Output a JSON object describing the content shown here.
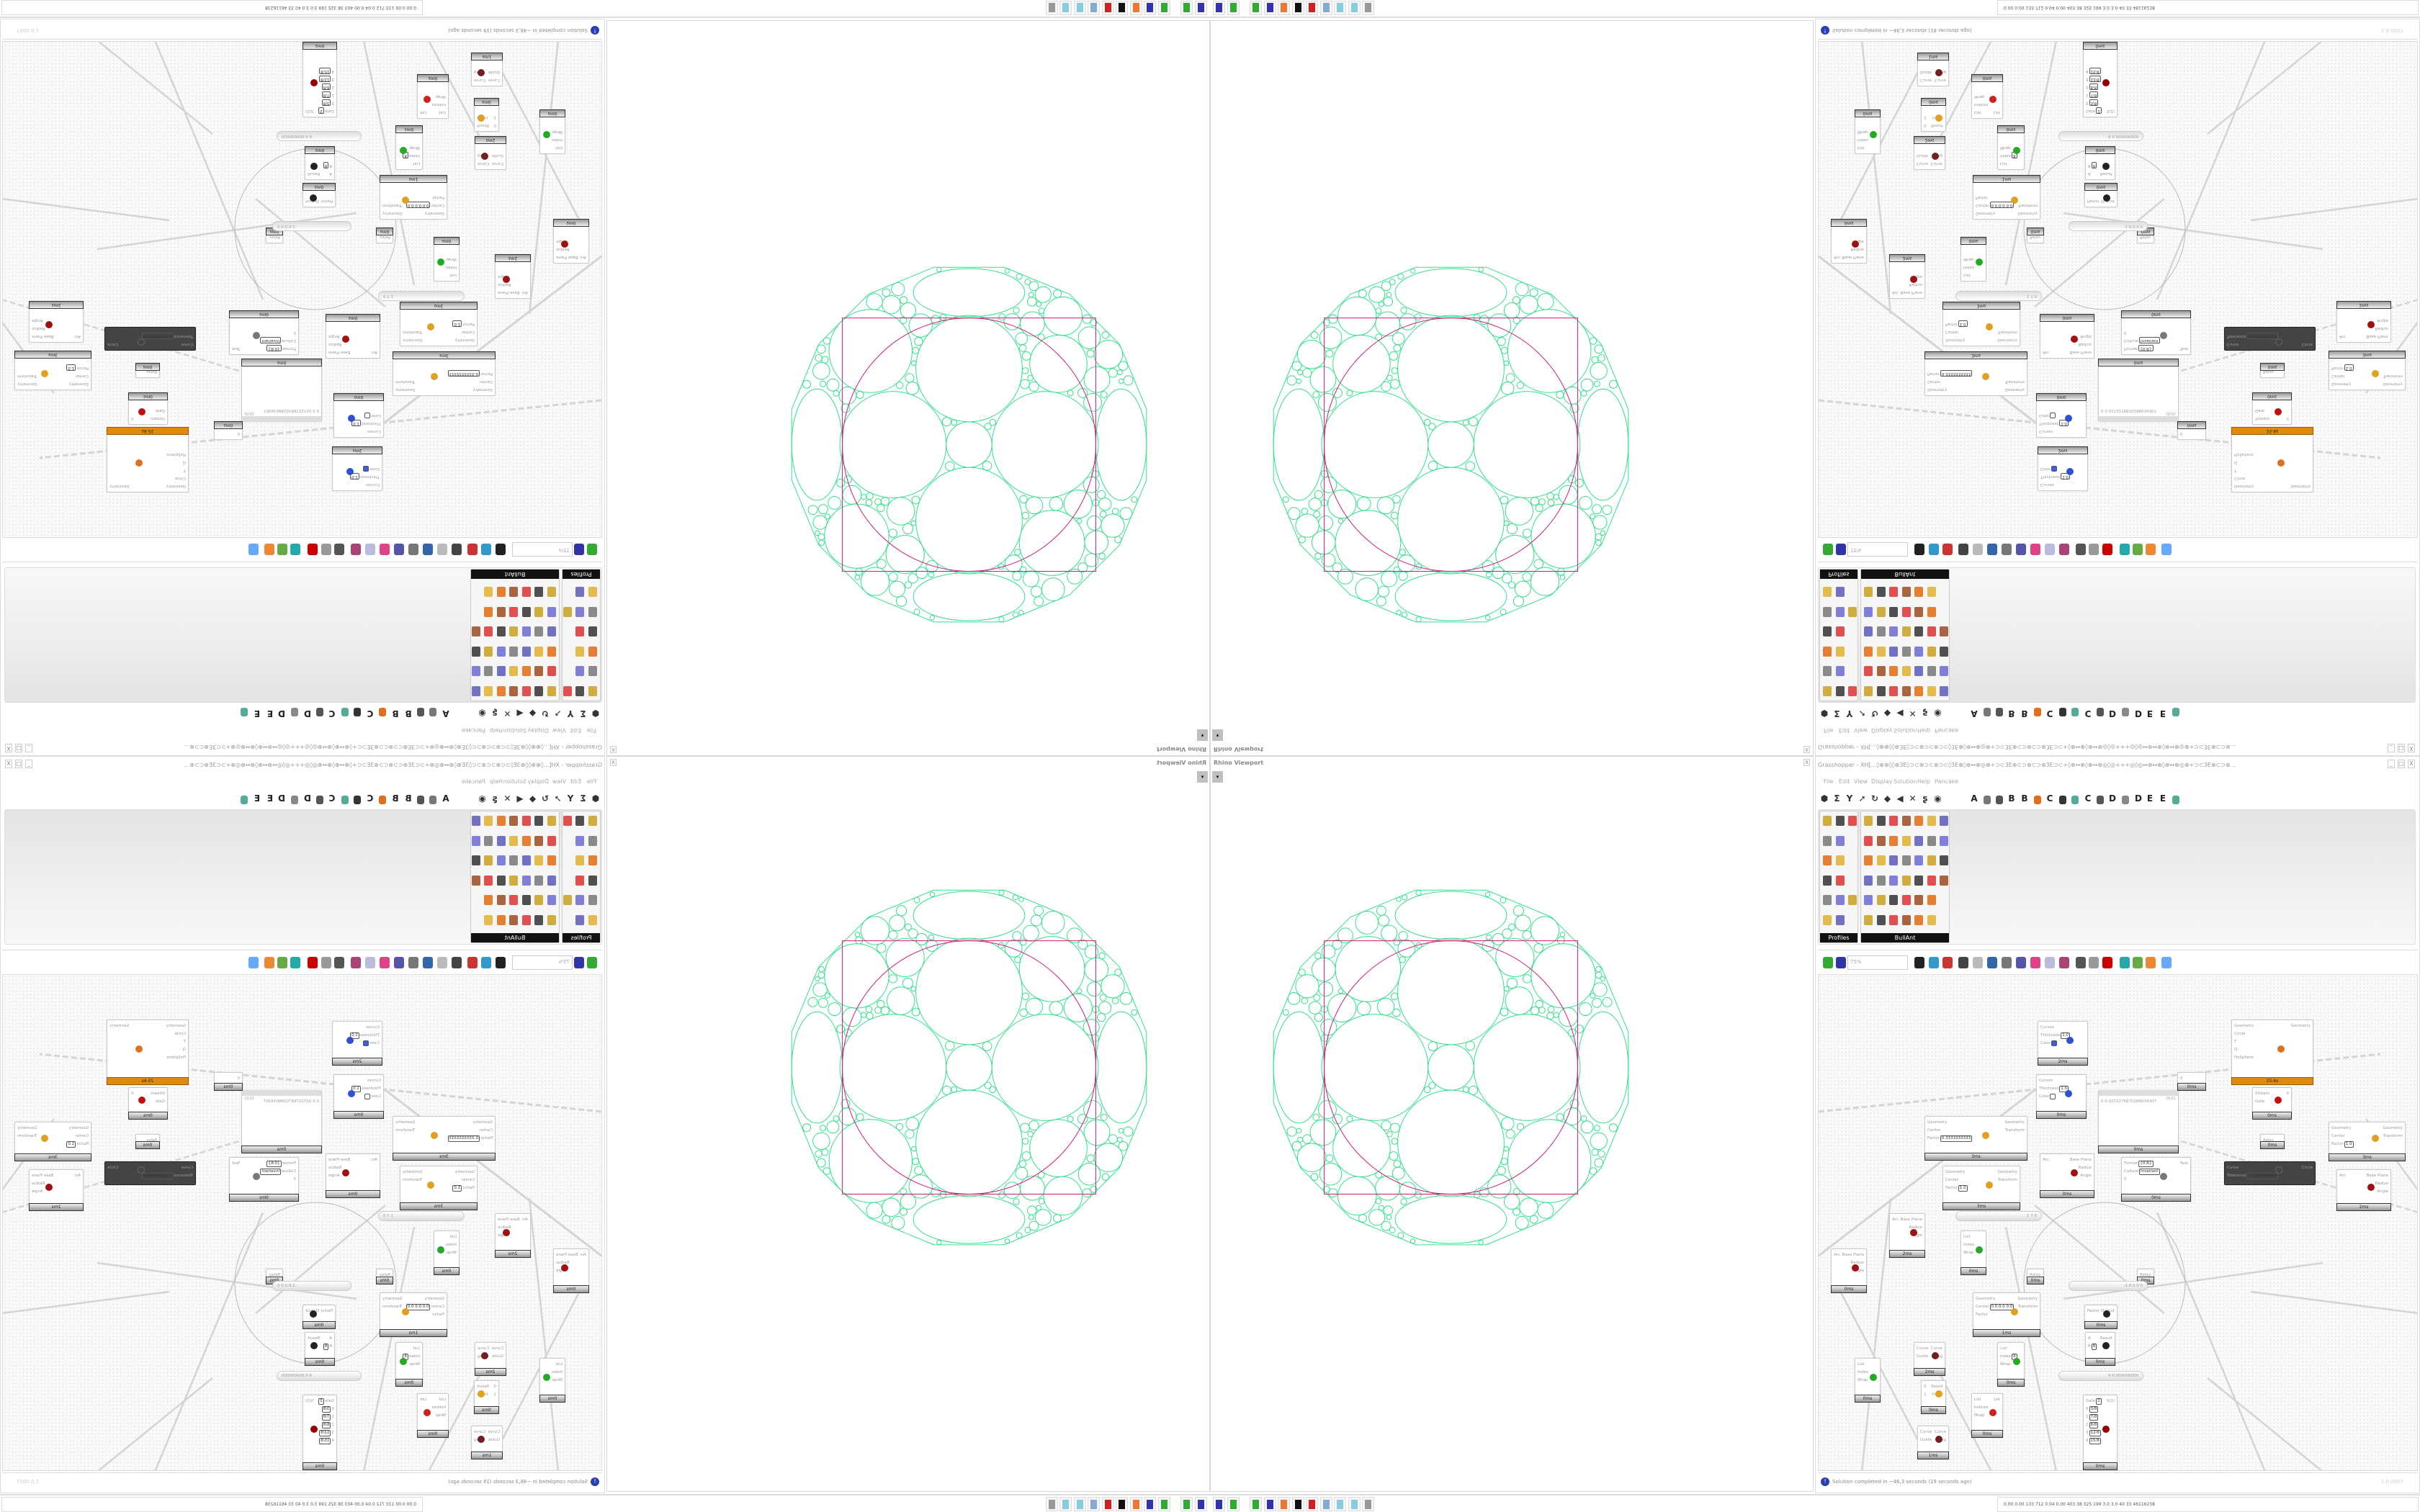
{
  "viewport": {
    "title": "Rhino Viewport",
    "close": "X",
    "dropdown": "▾"
  },
  "grasshopper": {
    "title": "Grasshopper - XH[...◊⊕⊕◊◊⊕3E◊⊃⊂⊗⊃⊂⊗⊃⊂◊3E⊕◊⊕↔⊕◎⊕+⊃⊂3E⊗⊂⊃⊗⊂⊃⊗3E⊃⊂+◊⊗↔⊕◊⊕↔⊕◎◊◎+++◎◊◎↔⊕↔⊕◊⊕↔⊕◎⊕+⊃⊂3E⊗⊂⊃⊗...",
    "window_buttons": [
      "_",
      "□",
      "X"
    ],
    "menu": [
      "File",
      "Edit",
      "View",
      "Display",
      "Solution",
      "Help",
      "Pancake"
    ],
    "tab_icons": [
      "hexagon-icon",
      "sigma-icon",
      "vector-icon",
      "arrow-icon",
      "loop-icon",
      "surface-icon",
      "mesh-icon",
      "intersect-icon",
      "transform-icon",
      "eye-icon"
    ],
    "tab_glyphs": [
      "⬢",
      "Σ",
      "Y",
      "➚",
      "↻",
      "◆",
      "◀",
      "✕",
      "ʂ",
      "◉"
    ],
    "tab_letters": [
      "A",
      "B",
      "B",
      "C",
      "C",
      "D",
      "D",
      "E",
      "E"
    ],
    "palette": {
      "groups": [
        "Profiles",
        "BullAnt"
      ]
    },
    "toolbar": {
      "zoom": "75%",
      "icons": [
        "new-file-icon",
        "save-icon",
        "zoom-extents-icon",
        "preview-eye-icon",
        "sketch-icon",
        "bake-icon",
        "email-icon",
        "gha-icon",
        "info-icon",
        "search-icon",
        "package-icon",
        "balloon-icon",
        "wires-icon",
        "preview-off-icon",
        "preview-wire-icon",
        "preview-shaded-icon",
        "kangaroo-icon",
        "cone-icon",
        "sphere-icon",
        "blob-icon"
      ]
    },
    "status": {
      "text": "Solution completed in ~46,3 seconds (19 seconds ago)",
      "version": "1.0.0007"
    }
  },
  "canvas": {
    "nodes": [
      {
        "inputs": [
          {
            "label": "Curves"
          },
          {
            "label": "Thickness",
            "value": "1.0"
          },
          {
            "label": "Color",
            "swatch": "#3a5fe0"
          }
        ],
        "outputs": [],
        "time": "2ms"
      },
      {
        "inputs": [
          {
            "label": "Curves"
          },
          {
            "label": "Thickness",
            "value": "1.0"
          },
          {
            "label": "Color",
            "swatch": "#ffffff"
          }
        ],
        "outputs": [],
        "time": "0ms"
      },
      {
        "inputs": [
          {
            "label": "Geometry"
          },
          {
            "label": "Center"
          },
          {
            "label": "Factor",
            "value": "0.3333333333"
          }
        ],
        "outputs": [
          "Geometry",
          "Transform"
        ],
        "time": "3ms"
      },
      {
        "inputs": [
          {
            "label": "Geometry"
          },
          {
            "label": "Center"
          },
          {
            "label": "Factor",
            "value": "1.0"
          }
        ],
        "outputs": [
          "Geometry",
          "Transform"
        ],
        "time": "3ms"
      },
      {
        "inputs": [
          {
            "label": "Arc"
          }
        ],
        "outputs": [
          "Base Plane",
          "Radius",
          "Angle"
        ],
        "time": "0ms"
      },
      {
        "inputs": [
          {
            "label": "Format",
            "value": "{0:R}"
          },
          {
            "label": "Culture",
            "value": "Invariant"
          },
          {
            "label": "0"
          }
        ],
        "outputs": [
          "Text"
        ],
        "time": "0ms"
      },
      {
        "panel": true,
        "header": "{0;0}",
        "inputs": [
          {
            "label": "0  0.0272276870288034307"
          }
        ],
        "outputs": [],
        "time": "0ms"
      },
      {
        "inputs": [
          {
            "label": "Geometry"
          },
          {
            "label": "Circle"
          },
          {
            "label": "T"
          },
          {
            "label": "Q"
          },
          {
            "label": "FixSphere"
          }
        ],
        "outputs": [
          "Geometry"
        ],
        "time": "25.6s",
        "state": "orange"
      },
      {
        "inputs": [
          {
            "label": "Stream"
          },
          {
            "label": "Gate"
          }
        ],
        "outputs": [
          "0"
        ],
        "time": "0ms"
      },
      {
        "inputs": [
          {
            "label": "Relay"
          }
        ],
        "outputs": [],
        "time": "0ms"
      },
      {
        "inputs": [
          {
            "label": "Curve"
          },
          {
            "label": "Tolerance",
            "value": "0.0000000004"
          }
        ],
        "outputs": [
          "Circle"
        ],
        "state": "dark"
      },
      {
        "inputs": [
          {
            "label": "Geometry"
          },
          {
            "label": "Center"
          },
          {
            "label": "Factor",
            "value": "1.0"
          }
        ],
        "outputs": [
          "Geometry",
          "Transform"
        ],
        "time": "3ms"
      },
      {
        "inputs": [
          {
            "label": "Arc"
          }
        ],
        "outputs": [
          "Base Plane",
          "Radius",
          "Angle"
        ],
        "time": "2ms"
      },
      {
        "inputs": [
          {
            "label": "0"
          }
        ],
        "outputs": [],
        "time": "0ms"
      },
      {
        "inputs": [
          {
            "label": "Arc"
          }
        ],
        "outputs": [
          "Base Plane",
          "Radius",
          "Angle"
        ],
        "time": "2ms"
      },
      {
        "inputs": [
          {
            "label": "Arc"
          }
        ],
        "outputs": [
          "Base Plane",
          "Radius",
          "Angle"
        ],
        "time": "0ms"
      },
      {
        "inputs": [
          {
            "label": "List"
          },
          {
            "label": "Index"
          },
          {
            "label": "Wrap"
          }
        ],
        "outputs": [],
        "time": "0ms"
      },
      {
        "inputs": [
          {
            "label": "Geometry"
          },
          {
            "label": "Center",
            "value": "0.0 0.0 0.0"
          },
          {
            "label": "Factor"
          }
        ],
        "outputs": [
          "Geometry",
          "Transform"
        ],
        "time": "1ms"
      },
      {
        "inputs": [
          {
            "label": "Curve"
          },
          {
            "label": "Guide"
          }
        ],
        "outputs": [
          "Curve",
          "Flag"
        ],
        "time": "2ms"
      },
      {
        "inputs": [
          {
            "label": "List"
          },
          {
            "label": "Index",
            "value": "8"
          },
          {
            "label": "Wrap"
          }
        ],
        "outputs": [],
        "time": "0ms"
      },
      {
        "inputs": [
          {
            "label": "List"
          },
          {
            "label": "Index"
          },
          {
            "label": "Wrap"
          }
        ],
        "outputs": [],
        "time": "0ms"
      },
      {
        "inputs": [
          {
            "label": "0"
          },
          {
            "label": "1"
          }
        ],
        "outputs": [
          "Result",
          "Index"
        ],
        "time": "0ms"
      },
      {
        "inputs": [
          {
            "label": "List"
          },
          {
            "label": "Indices"
          },
          {
            "label": "Wrap"
          }
        ],
        "outputs": [
          "List"
        ],
        "time": "0ms"
      },
      {
        "inputs": [
          {
            "label": "Curve"
          },
          {
            "label": "Guide"
          }
        ],
        "outputs": [
          "Curve",
          "Flag"
        ],
        "time": "1ms"
      },
      {
        "inputs": [
          {
            "label": "Factor"
          }
        ],
        "outputs": [
          "Output"
        ],
        "time": "0ms"
      },
      {
        "inputs": [
          {
            "label": "A"
          },
          {
            "label": "B",
            "value": "8"
          }
        ],
        "outputs": [
          "Result"
        ],
        "time": "0ms"
      },
      {
        "inputs": [
          {
            "label": "Gate",
            "value": "2"
          },
          {
            "label": "0",
            "value": "3/8"
          },
          {
            "label": "1",
            "value": "7/8"
          },
          {
            "label": "2",
            "value": "8/8"
          },
          {
            "label": "3",
            "value": "12/8"
          },
          {
            "label": "4",
            "value": "15/8"
          }
        ],
        "outputs": [
          "S(2)"
        ],
        "time": "0ms"
      },
      {
        "inputs": [
          {
            "label": "Relay"
          }
        ],
        "outputs": [],
        "time": "0ms"
      },
      {
        "inputs": [
          {
            "label": "Relay"
          }
        ],
        "outputs": [],
        "time": "0ms"
      }
    ],
    "sliders": [
      "1 7 0",
      "9 0.000000000",
      "-1.0  0.0  0"
    ]
  },
  "taskbar": {
    "icons": [
      "floppy-x86-icon",
      "drive-icon",
      "drive-icon",
      "floppy-x64-icon",
      "firefox-icon",
      "inkscape-icon",
      "antivirus-icon",
      "calculator-icon",
      "notepad-icon",
      "notepad-icon",
      "printer-icon"
    ],
    "tray": "0.00 0.00 133 712 0.04 0.00 403 38 325 199 3.0 3.0 40 33 46116238"
  },
  "colors": {
    "packing": "#35e08c",
    "frame": "#d01f7a",
    "accent": "#e08a10"
  }
}
